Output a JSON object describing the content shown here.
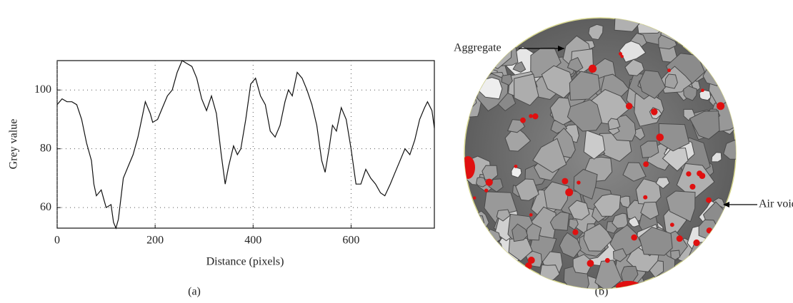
{
  "chart_data": {
    "type": "line",
    "x_label": "Distance (pixels)",
    "y_label": "Grey value",
    "x": [
      0,
      10,
      20,
      30,
      40,
      50,
      60,
      70,
      75,
      80,
      90,
      95,
      100,
      110,
      115,
      120,
      125,
      135,
      145,
      155,
      165,
      175,
      180,
      190,
      195,
      205,
      215,
      225,
      235,
      245,
      255,
      265,
      275,
      285,
      295,
      305,
      315,
      325,
      335,
      343,
      350,
      360,
      368,
      375,
      385,
      395,
      405,
      415,
      425,
      435,
      445,
      455,
      465,
      472,
      480,
      490,
      500,
      510,
      520,
      530,
      540,
      547,
      555,
      562,
      570,
      580,
      590,
      600,
      610,
      620,
      630,
      640,
      650,
      660,
      669,
      680,
      690,
      700,
      710,
      720,
      730,
      740,
      750,
      756,
      765,
      770
    ],
    "values": [
      95,
      97,
      96,
      96,
      95,
      90,
      82,
      76,
      68,
      64,
      66,
      63,
      60,
      61,
      55,
      53,
      56,
      70,
      74,
      78,
      84,
      92,
      96,
      92,
      89,
      90,
      94,
      98,
      100,
      106,
      110,
      109,
      108,
      104,
      97,
      93,
      98,
      92,
      78,
      68,
      74,
      81,
      78,
      80,
      90,
      102,
      104,
      98,
      95,
      86,
      84,
      88,
      96,
      100,
      98,
      106,
      104,
      100,
      95,
      88,
      76,
      72,
      80,
      88,
      86,
      94,
      90,
      80,
      68,
      68,
      73,
      70,
      68,
      65,
      64,
      68,
      72,
      76,
      80,
      78,
      83,
      90,
      94,
      96,
      93,
      87
    ],
    "color": "#111111",
    "xlim": [
      0,
      770
    ],
    "ylim": [
      53,
      110
    ],
    "xticks": [
      0,
      200,
      400,
      600
    ],
    "yticks": [
      60,
      80,
      100
    ],
    "grid": true
  },
  "panel_labels": [
    "(a)",
    "(b)"
  ],
  "image": {
    "annotations": [
      "Aggregate",
      "Air void"
    ]
  }
}
